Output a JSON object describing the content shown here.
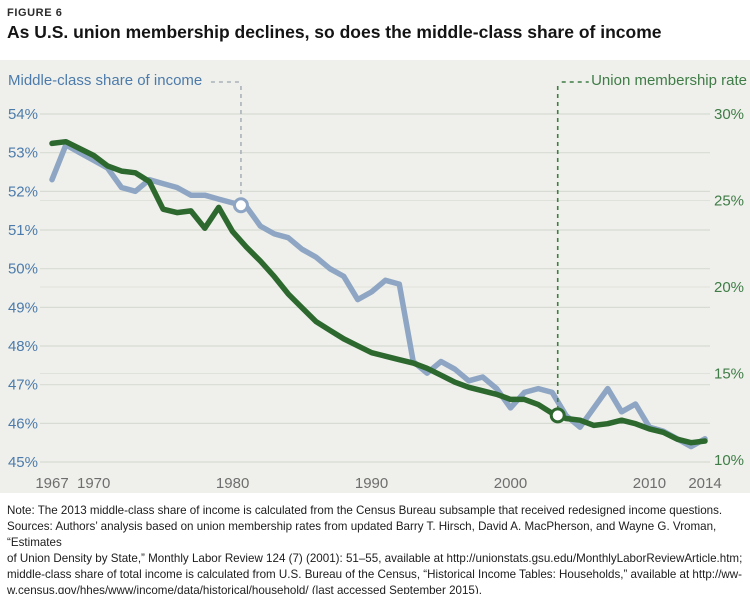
{
  "figure": {
    "label": "FIGURE 6",
    "title": "As U.S. union membership declines, so does the middle-class share of income"
  },
  "legend": {
    "left_label": "Middle-class share of income",
    "right_label": "Union membership rate"
  },
  "note": "Note: The 2013 middle-class share of income is calculated from the Census Bureau subsample that received redesigned income questions.\nSources: Authors’ analysis based on union membership rates from updated Barry T. Hirsch, David A. MacPherson, and Wayne G. Vroman, “Estimates\nof Union Density by State,” Monthly Labor Review 124 (7) (2001): 51–55, available at http://unionstats.gsu.edu/MonthlyLaborReviewArticle.htm;\nmiddle-class share of total income is calculated from U.S. Bureau of the Census, “Historical Income Tables: Households,” available at http://ww-\nw.census.gov/hhes/www/income/data/historical/household/ (last accessed September 2015).",
  "colors": {
    "income_line": "#8ea6c4",
    "union_line": "#2d682f",
    "income_text": "#4c7bab",
    "union_text": "#3f7c47",
    "grid": "#d8dbd3",
    "grid_right": "#dfe2da",
    "x_tick_text": "#6e6e6e",
    "panel_bg": "#eff0eb",
    "callout_gray": "#a9b2ba"
  },
  "chart_data": {
    "type": "line",
    "title": "As U.S. union membership declines, so does the middle-class share of income",
    "x_years": [
      1967,
      1968,
      1969,
      1970,
      1971,
      1972,
      1973,
      1974,
      1975,
      1976,
      1977,
      1978,
      1979,
      1980,
      1981,
      1982,
      1983,
      1984,
      1985,
      1986,
      1987,
      1988,
      1989,
      1990,
      1991,
      1992,
      1993,
      1994,
      1995,
      1996,
      1997,
      1998,
      1999,
      2000,
      2001,
      2002,
      2003,
      2004,
      2005,
      2006,
      2007,
      2008,
      2009,
      2010,
      2011,
      2012,
      2013,
      2014
    ],
    "x_tick_years": [
      1967,
      1970,
      1980,
      1990,
      2000,
      2010,
      2014
    ],
    "x_tick_labels": [
      "1967",
      "1970",
      "1980",
      "1990",
      "2000",
      "2010",
      "2014"
    ],
    "left_axis": {
      "min": 45,
      "max": 54,
      "tick_step": 1,
      "tick_labels": [
        "54%",
        "53%",
        "52%",
        "51%",
        "50%",
        "49%",
        "48%",
        "47%",
        "46%",
        "45%"
      ],
      "tick_values": [
        54,
        53,
        52,
        51,
        50,
        49,
        48,
        47,
        46,
        45
      ]
    },
    "right_axis": {
      "min": 10,
      "max": 30,
      "tick_step": 5,
      "tick_labels": [
        "30%",
        "25%",
        "20%",
        "15%",
        "10%"
      ],
      "tick_values": [
        30,
        25,
        20,
        15,
        10
      ]
    },
    "grid": true,
    "legend_position": "top",
    "series": [
      {
        "name": "Middle-class share of income",
        "axis": "left",
        "values": [
          52.3,
          53.2,
          53.0,
          52.8,
          52.6,
          52.1,
          52.0,
          52.3,
          52.2,
          52.1,
          51.9,
          51.9,
          51.8,
          51.7,
          51.6,
          51.1,
          50.9,
          50.8,
          50.5,
          50.3,
          50.0,
          49.8,
          49.2,
          49.4,
          49.7,
          49.6,
          47.6,
          47.3,
          47.6,
          47.4,
          47.1,
          47.2,
          46.9,
          46.4,
          46.8,
          46.9,
          46.8,
          46.2,
          45.9,
          46.4,
          46.9,
          46.3,
          46.5,
          45.9,
          45.8,
          45.6,
          45.4,
          45.6
        ]
      },
      {
        "name": "Union membership rate",
        "axis": "right",
        "values": [
          28.3,
          28.4,
          28.0,
          27.6,
          27.0,
          26.7,
          26.6,
          26.1,
          24.5,
          24.3,
          24.4,
          23.4,
          24.6,
          23.2,
          22.3,
          21.5,
          20.6,
          19.6,
          18.8,
          18.0,
          17.5,
          17.0,
          16.6,
          16.2,
          16.0,
          15.8,
          15.6,
          15.3,
          14.9,
          14.5,
          14.2,
          14.0,
          13.8,
          13.5,
          13.5,
          13.2,
          12.7,
          12.4,
          12.3,
          12.0,
          12.1,
          12.3,
          12.1,
          11.8,
          11.6,
          11.2,
          11.0,
          11.1
        ]
      }
    ],
    "callouts": [
      {
        "series": 0,
        "year": 1980.6,
        "label": "Middle-class share of income"
      },
      {
        "series": 1,
        "year": 2003.4,
        "label": "Union membership rate"
      }
    ]
  }
}
